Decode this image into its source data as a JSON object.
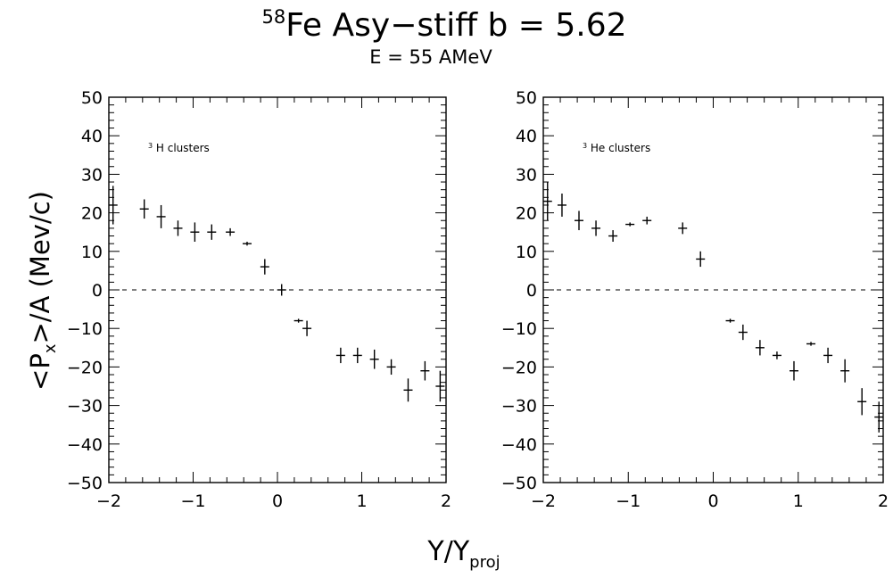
{
  "header": {
    "title_sup": "58",
    "title_main": "Fe Asy−stiff  b = 5.62",
    "subtitle": "E = 55 AMeV"
  },
  "axes": {
    "ylabel_prefix": "<P",
    "ylabel_sub": "x",
    "ylabel_suffix": ">/A  (Mev/c)",
    "xlabel_main": "Y/Y",
    "xlabel_sub": "proj"
  },
  "chart_data": [
    {
      "type": "scatter",
      "title": "",
      "annotation_sup": "3",
      "annotation_text": "H clusters",
      "xlim": [
        -2,
        2
      ],
      "ylim": [
        -50,
        50
      ],
      "xticks": [
        -2,
        -1,
        0,
        1,
        2
      ],
      "yticks": [
        -50,
        -40,
        -30,
        -20,
        -10,
        0,
        10,
        20,
        30,
        40,
        50
      ],
      "xtick_labels": [
        "−2",
        "−1",
        "0",
        "1",
        "2"
      ],
      "ytick_labels": [
        "−50",
        "−40",
        "−30",
        "−20",
        "−10",
        "0",
        "10",
        "20",
        "30",
        "40",
        "50"
      ],
      "zero_line": "dashed",
      "x": [
        -1.95,
        -1.58,
        -1.38,
        -1.18,
        -0.98,
        -0.78,
        -0.56,
        -0.36,
        -0.15,
        0.05,
        0.25,
        0.35,
        0.75,
        0.95,
        1.15,
        1.35,
        1.55,
        1.75,
        1.93
      ],
      "y": [
        22,
        21,
        19,
        16,
        15,
        15,
        15,
        12,
        6,
        0,
        -8,
        -10,
        -17,
        -17,
        -18,
        -20,
        -26,
        -21,
        -25
      ],
      "yerr": [
        5,
        2.5,
        3,
        2,
        2.5,
        2,
        1,
        0.5,
        2,
        1.5,
        0.5,
        2,
        2,
        2,
        2.5,
        2,
        3,
        2.5,
        4
      ]
    },
    {
      "type": "scatter",
      "title": "",
      "annotation_sup": "3",
      "annotation_text": "He clusters",
      "xlim": [
        -2,
        2
      ],
      "ylim": [
        -50,
        50
      ],
      "xticks": [
        -2,
        -1,
        0,
        1,
        2
      ],
      "yticks": [
        -50,
        -40,
        -30,
        -20,
        -10,
        0,
        10,
        20,
        30,
        40,
        50
      ],
      "xtick_labels": [
        "−2",
        "−1",
        "0",
        "1",
        "2"
      ],
      "ytick_labels": [
        "−50",
        "−40",
        "−30",
        "−20",
        "−10",
        "0",
        "10",
        "20",
        "30",
        "40",
        "50"
      ],
      "zero_line": "dashed",
      "x": [
        -1.95,
        -1.78,
        -1.58,
        -1.38,
        -1.18,
        -0.98,
        -0.78,
        -0.36,
        -0.15,
        0.2,
        0.35,
        0.55,
        0.75,
        0.95,
        1.15,
        1.35,
        1.55,
        1.75,
        1.95
      ],
      "y": [
        23,
        22,
        18,
        16,
        14,
        17,
        18,
        16,
        8,
        -8,
        -11,
        -15,
        -17,
        -21,
        -14,
        -17,
        -21,
        -29,
        -33
      ],
      "yerr": [
        5,
        3,
        2.5,
        2,
        1.5,
        0.5,
        1,
        1.5,
        2,
        0.5,
        2,
        2,
        1,
        2.5,
        0.5,
        2,
        3,
        3.5,
        4
      ]
    }
  ]
}
